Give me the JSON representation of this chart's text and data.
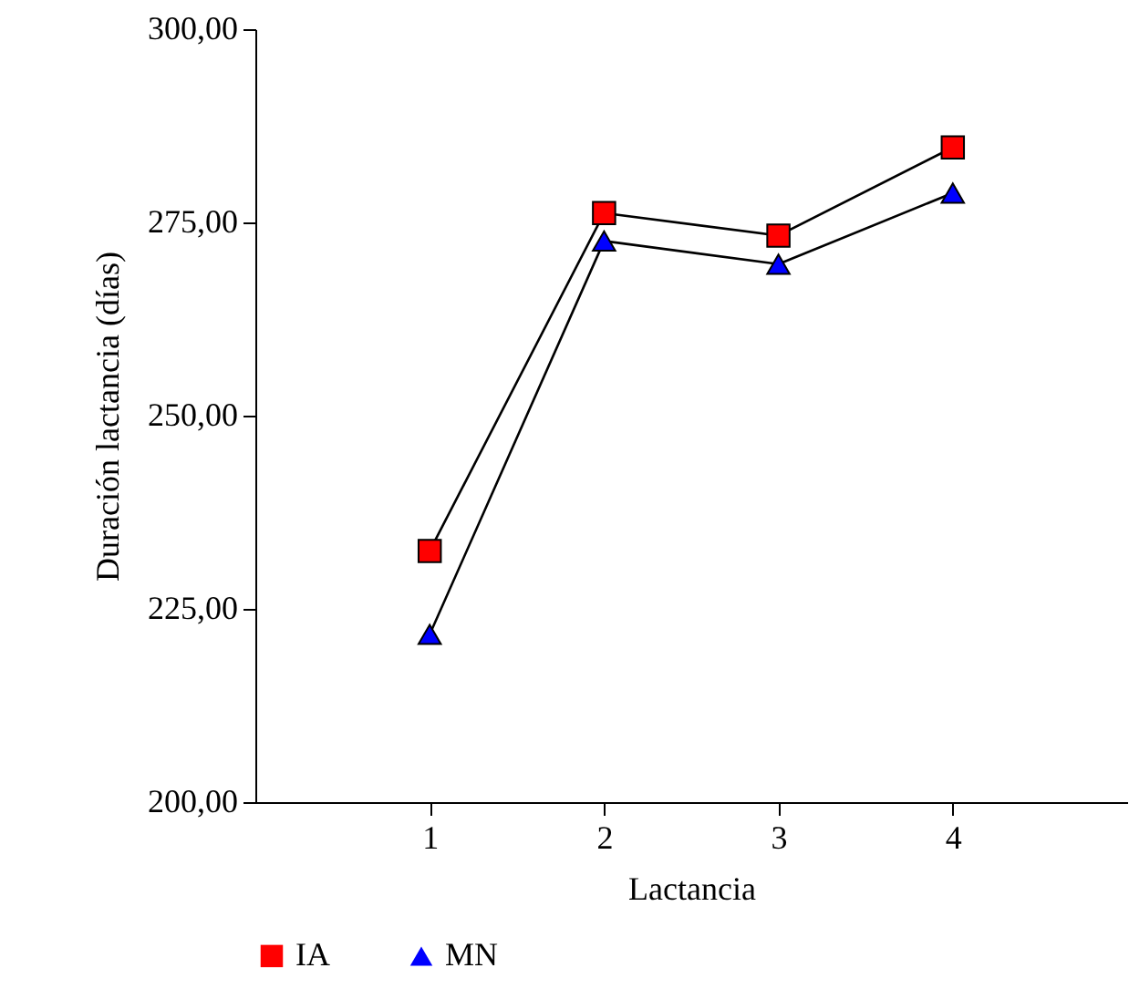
{
  "chart_data": {
    "type": "line",
    "xlabel": "Lactancia",
    "ylabel": "Duración lactancia (días)",
    "x": [
      1,
      2,
      3,
      4
    ],
    "xlim": [
      0,
      5
    ],
    "xticks": [
      1,
      2,
      3,
      4
    ],
    "ylim": [
      200,
      300
    ],
    "yticks": [
      {
        "value": 200,
        "label": "200,00"
      },
      {
        "value": 225,
        "label": "225,00"
      },
      {
        "value": 250,
        "label": "250,00"
      },
      {
        "value": 275,
        "label": "275,00"
      },
      {
        "value": 300,
        "label": "300,00"
      }
    ],
    "series": [
      {
        "name": "IA",
        "color": "#ff0000",
        "marker": "square",
        "values": [
          232.5,
          276.2,
          273.3,
          284.7
        ]
      },
      {
        "name": "MN",
        "color": "#0000ff",
        "marker": "triangle",
        "values": [
          221.7,
          272.6,
          269.6,
          278.8
        ]
      }
    ],
    "grid": false,
    "legend": "bottom",
    "line_style": "solid"
  }
}
